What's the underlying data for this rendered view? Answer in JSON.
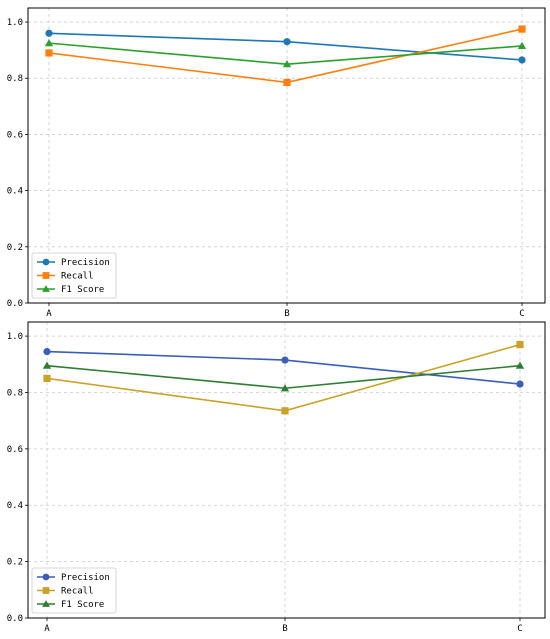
{
  "chart_data": [
    {
      "type": "line",
      "categories": [
        "A",
        "B",
        "C"
      ],
      "ylim": [
        0.0,
        1.05
      ],
      "yticks": [
        "0.0",
        "0.2",
        "0.4",
        "0.6",
        "0.8",
        "1.0"
      ],
      "grid": true,
      "legend_position": "lower-left",
      "series": [
        {
          "name": "Precision",
          "values": [
            0.96,
            0.93,
            0.865
          ],
          "color": "#1f77b4",
          "marker": "circle"
        },
        {
          "name": "Recall",
          "values": [
            0.89,
            0.785,
            0.975
          ],
          "color": "#ff7f0e",
          "marker": "square"
        },
        {
          "name": "F1 Score",
          "values": [
            0.925,
            0.85,
            0.915
          ],
          "color": "#2ca02c",
          "marker": "triangle"
        }
      ]
    },
    {
      "type": "line",
      "categories": [
        "A",
        "B",
        "C"
      ],
      "ylim": [
        0.0,
        1.05
      ],
      "yticks": [
        "0.0",
        "0.2",
        "0.4",
        "0.6",
        "0.8",
        "1.0"
      ],
      "grid": true,
      "legend_position": "lower-left",
      "series": [
        {
          "name": "Precision",
          "values": [
            0.945,
            0.915,
            0.83
          ],
          "color": "#3a5fb8",
          "marker": "circle"
        },
        {
          "name": "Recall",
          "values": [
            0.85,
            0.735,
            0.97
          ],
          "color": "#c9a227",
          "marker": "square"
        },
        {
          "name": "F1 Score",
          "values": [
            0.895,
            0.815,
            0.895
          ],
          "color": "#2e7d32",
          "marker": "triangle"
        }
      ]
    }
  ]
}
